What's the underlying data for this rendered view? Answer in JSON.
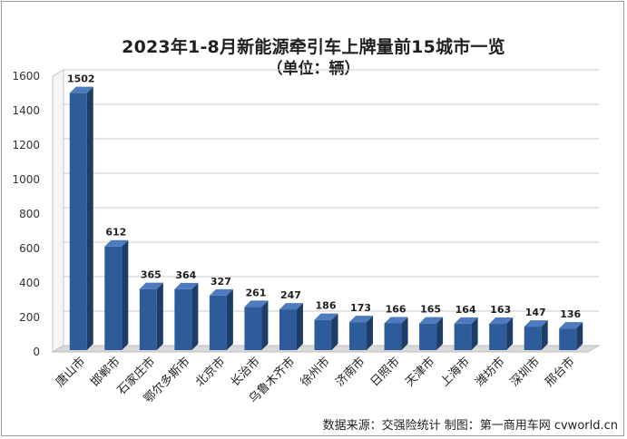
{
  "chart_data": {
    "type": "bar",
    "title": "2023年1-8月新能源牵引车上牌量前15城市一览",
    "subtitle": "（单位：辆）",
    "categories": [
      "唐山市",
      "邯郸市",
      "石家庄市",
      "鄂尔多斯市",
      "北京市",
      "长治市",
      "乌鲁木齐市",
      "徐州市",
      "济南市",
      "日照市",
      "天津市",
      "上海市",
      "潍坊市",
      "深圳市",
      "邢台市"
    ],
    "values": [
      1502,
      612,
      365,
      364,
      327,
      261,
      247,
      186,
      173,
      166,
      165,
      164,
      163,
      147,
      136
    ],
    "data_labels": [
      "1502",
      "612",
      "365",
      "364",
      "327",
      "261",
      "247",
      "186",
      "173",
      "166",
      "165",
      "164",
      "163",
      "147",
      "136"
    ],
    "yticks": [
      "0",
      "200",
      "400",
      "600",
      "800",
      "1000",
      "1200",
      "1400",
      "1600"
    ],
    "ylim": [
      0,
      1600
    ],
    "grid": true,
    "legend": "none",
    "colors": {
      "bar_front": "#2e5b9a",
      "bar_side": "#1d3c66",
      "bar_top": "#4d7bbd",
      "grid": "#c8c8c8",
      "wall": "#d9d9d9"
    }
  },
  "footer": {
    "source": "数据来源：交强险统计 制图：第一商用车网 cvworld.cn"
  }
}
